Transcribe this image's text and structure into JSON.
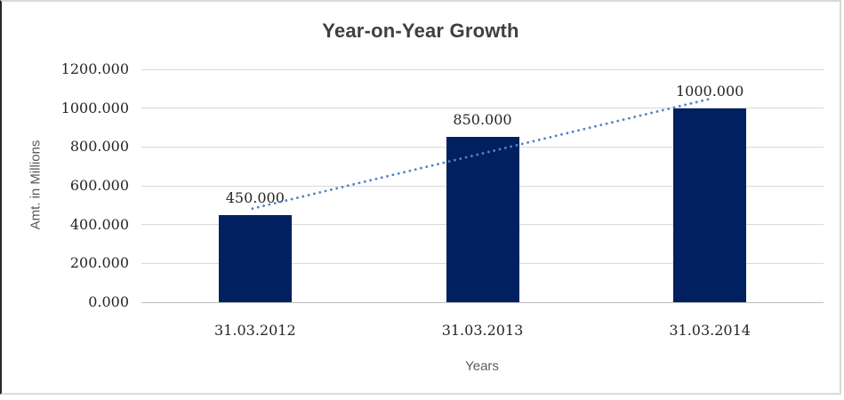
{
  "frame": {
    "background": "#FFFFFF",
    "border_color": "#D9D9D9",
    "left_edge_color": "#262626"
  },
  "chart_data": {
    "type": "bar",
    "title": "Year-on-Year Growth",
    "xlabel": "Years",
    "ylabel": "Amt. in Millions",
    "categories": [
      "31.03.2012",
      "31.03.2013",
      "31.03.2014"
    ],
    "values": [
      450,
      850,
      1000
    ],
    "data_labels": [
      "450.000",
      "850.000",
      "1000.000"
    ],
    "ylim": [
      0,
      1200
    ],
    "ytick_step": 200,
    "ytick_labels": [
      "0.000",
      "200.000",
      "400.000",
      "600.000",
      "800.000",
      "1000.000",
      "1200.000"
    ],
    "grid": true,
    "legend": "none",
    "bar_color": "#002060",
    "gridline_color": "#D9D9D9",
    "trendline": {
      "type": "linear",
      "style": "dotted",
      "color": "#4E86C8"
    }
  }
}
